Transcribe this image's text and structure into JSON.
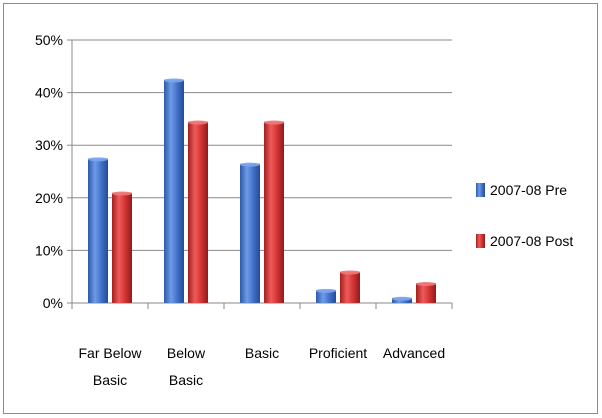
{
  "chart_data": {
    "type": "bar",
    "categories": [
      [
        "Far Below",
        "Basic"
      ],
      [
        "Below",
        "Basic"
      ],
      [
        "Basic"
      ],
      [
        "Proficient"
      ],
      [
        "Advanced"
      ]
    ],
    "series": [
      {
        "name": "2007-08 Pre",
        "values": [
          27.5,
          42.5,
          26.5,
          2.5,
          1.0
        ]
      },
      {
        "name": "2007-08 Post",
        "values": [
          21.0,
          34.5,
          34.5,
          6.0,
          3.8
        ]
      }
    ],
    "yticks": [
      "0%",
      "10%",
      "20%",
      "30%",
      "40%",
      "50%"
    ],
    "ylim": [
      0,
      50
    ],
    "gridlines": true,
    "legend_position": "right",
    "colors": {
      "pre": "#4472c4",
      "post": "#c0392b"
    }
  }
}
